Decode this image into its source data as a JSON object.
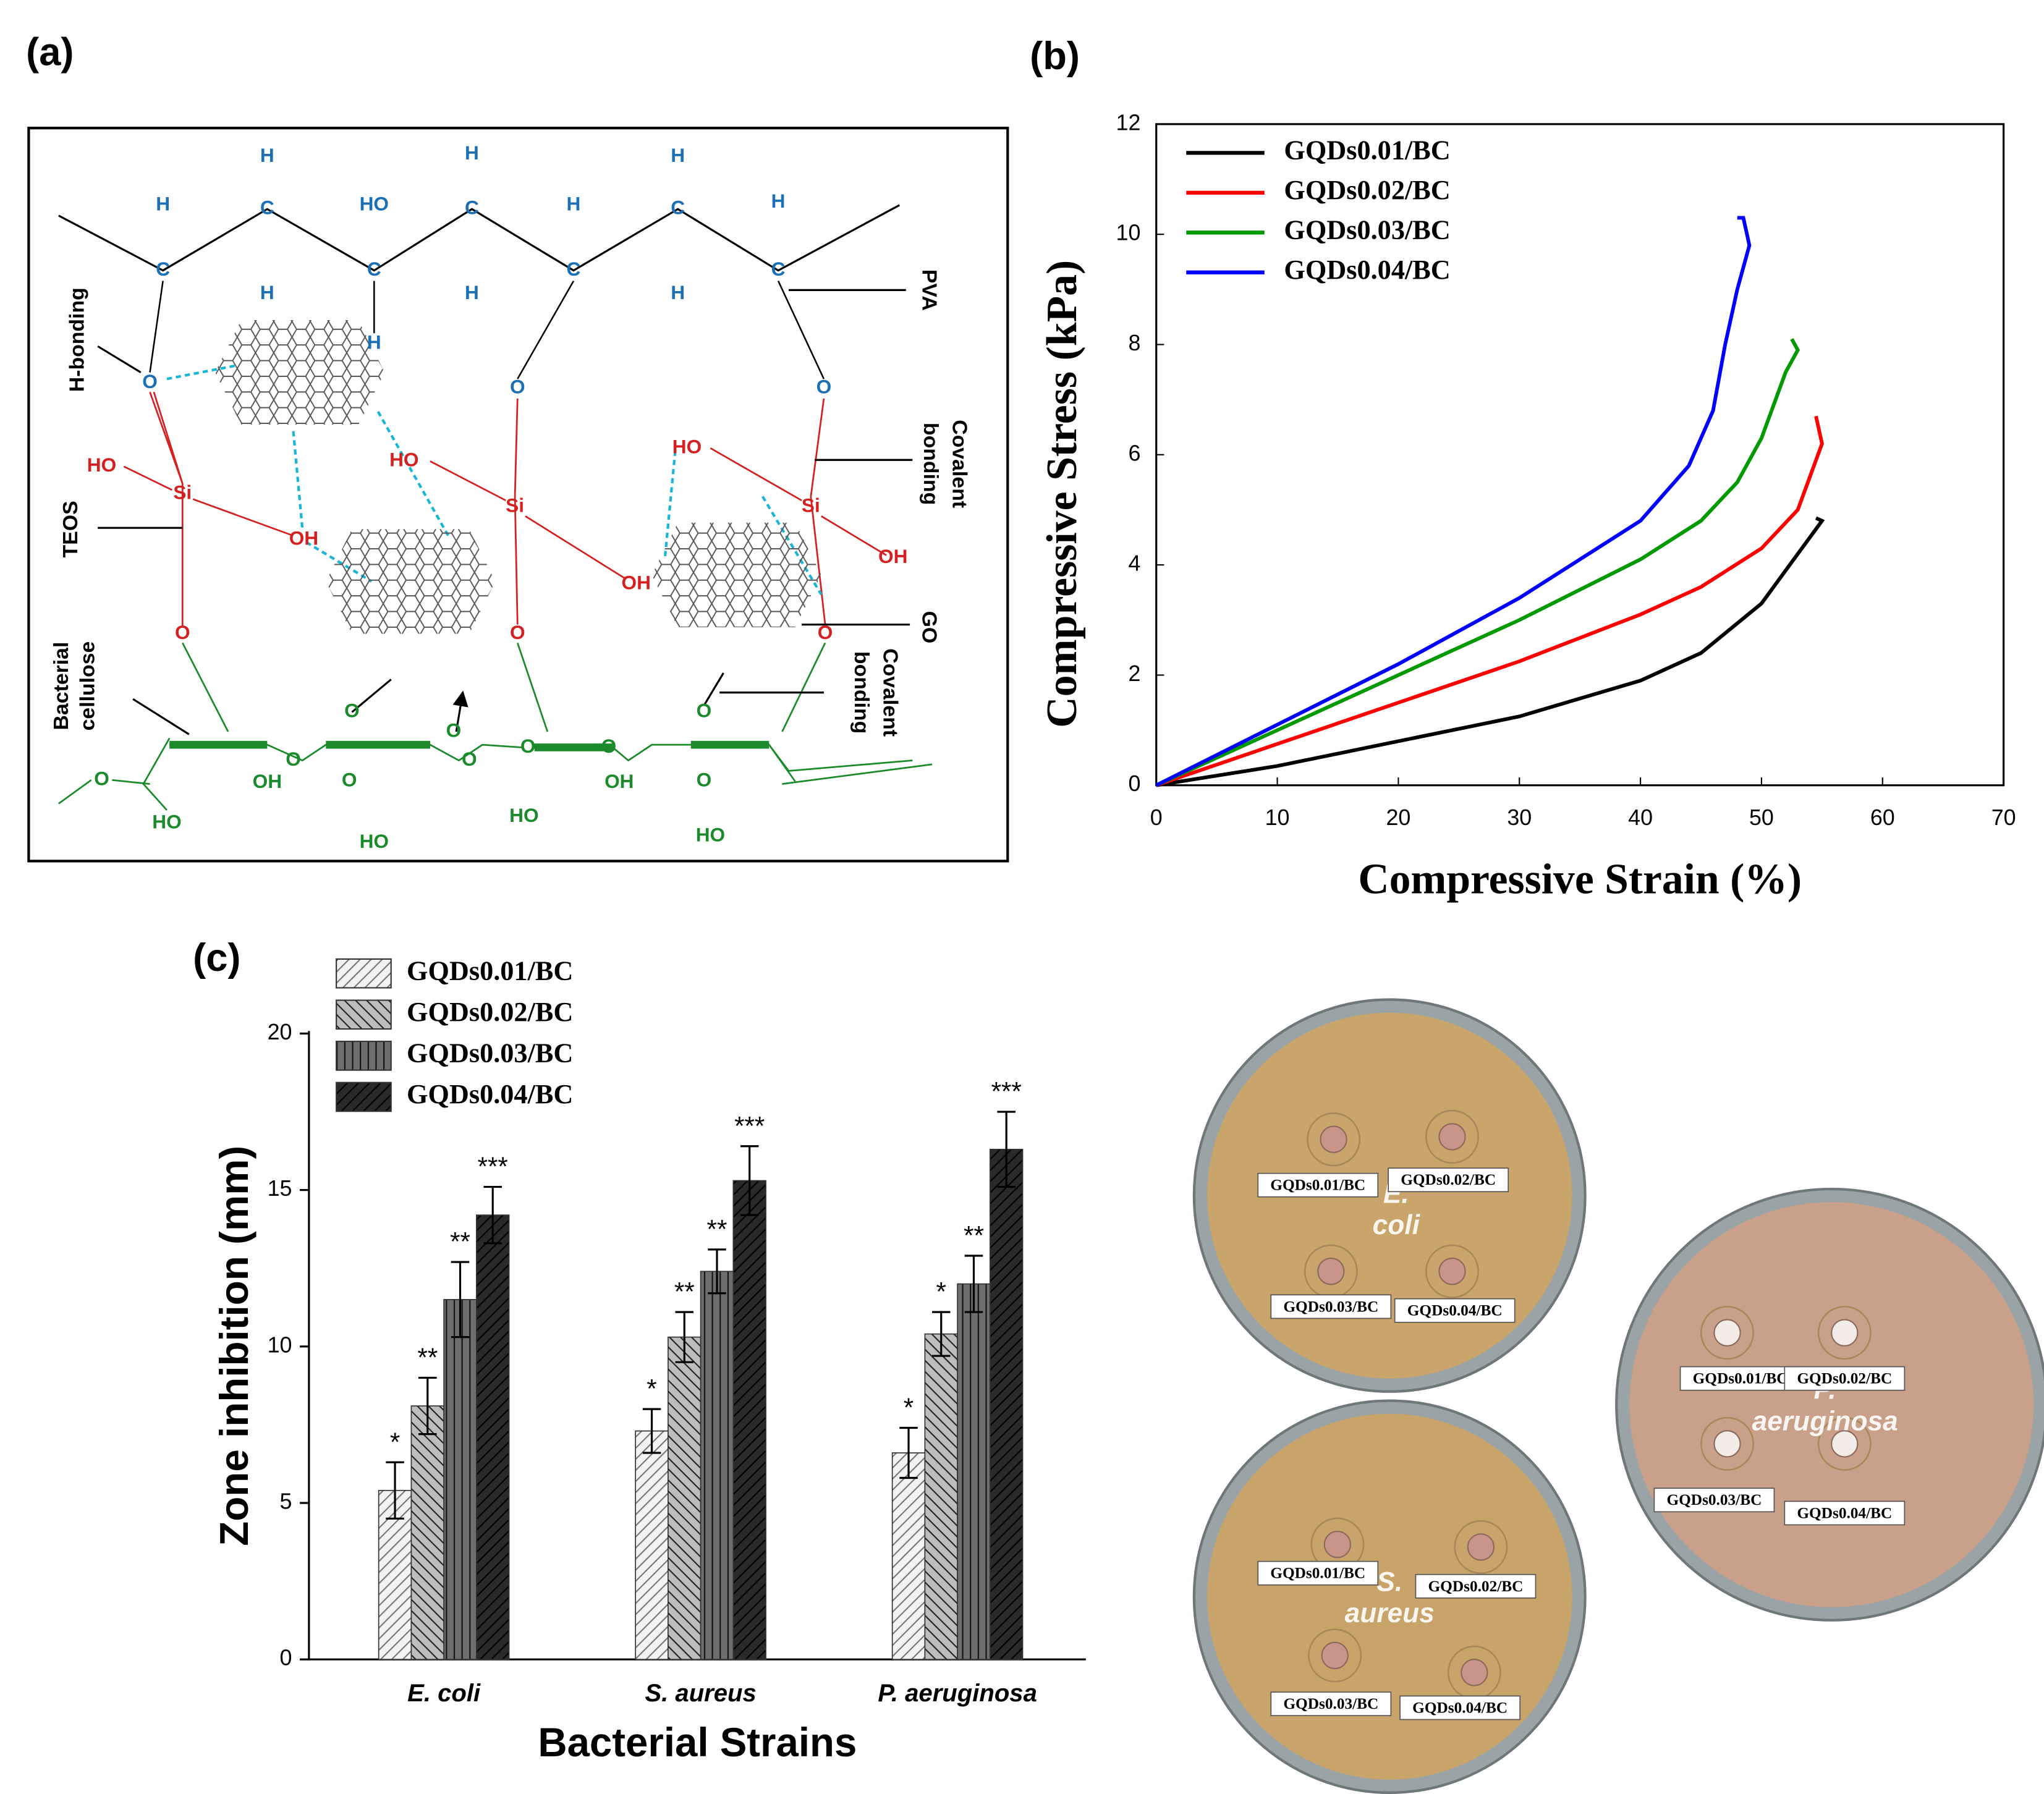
{
  "panel_labels": [
    "(a)",
    "(b)",
    "(c)"
  ],
  "diagram": {
    "labels": {
      "h_bonding": "H-bonding",
      "teos": "TEOS",
      "cellulose": [
        "Bacterial",
        "cellulose"
      ],
      "pva": "PVA",
      "covalent_1": [
        "Covalent",
        "bonding"
      ],
      "go": "GO",
      "covalent_2": [
        "Covalent",
        "bonding"
      ]
    },
    "atoms": [
      "C",
      "H",
      "C",
      "H",
      "H",
      "C",
      "HO",
      "H",
      "C",
      "H",
      "H",
      "C",
      "H",
      "C",
      "H",
      "H",
      "C",
      "H",
      "O",
      "O",
      "O",
      "HO",
      "Si",
      "OH",
      "HO",
      "Si",
      "OH",
      "HO",
      "Si",
      "OH",
      "O",
      "O",
      "O",
      "O",
      "OH",
      "HO",
      "O",
      "O",
      "O",
      "O",
      "HO",
      "O",
      "O",
      "OH",
      "HO",
      "O",
      "O",
      "O",
      "HO"
    ]
  },
  "chart_data": [
    {
      "type": "line",
      "xlabel": "Compressive Strain (%)",
      "ylabel": "Compressive Stress (kPa)",
      "xlim": [
        0,
        70
      ],
      "xticks": [
        0,
        10,
        20,
        30,
        40,
        50,
        60,
        70
      ],
      "ylim": [
        0,
        12
      ],
      "yticks": [
        0,
        2,
        4,
        6,
        8,
        10,
        12
      ],
      "legend": "upper left",
      "series": [
        {
          "name": "GQDs0.01/BC",
          "color": "#000000",
          "x": [
            0,
            10,
            20,
            30,
            40,
            45,
            50,
            53,
            55,
            54.5
          ],
          "values": [
            0,
            0.35,
            0.8,
            1.25,
            1.9,
            2.4,
            3.3,
            4.2,
            4.8,
            4.85
          ]
        },
        {
          "name": "GQDs0.02/BC",
          "color": "#ff0000",
          "x": [
            0,
            10,
            20,
            30,
            40,
            45,
            50,
            53,
            54,
            55,
            54.5
          ],
          "values": [
            0,
            0.75,
            1.5,
            2.25,
            3.1,
            3.6,
            4.3,
            5.0,
            5.6,
            6.2,
            6.7
          ]
        },
        {
          "name": "GQDs0.03/BC",
          "color": "#009900",
          "x": [
            0,
            10,
            20,
            30,
            40,
            45,
            48,
            50,
            52,
            53,
            52.5
          ],
          "values": [
            0,
            1,
            2,
            3,
            4.1,
            4.8,
            5.5,
            6.3,
            7.5,
            7.9,
            8.1
          ]
        },
        {
          "name": "GQDs0.04/BC",
          "color": "#0000ff",
          "x": [
            0,
            10,
            20,
            30,
            40,
            44,
            46,
            47,
            48,
            49,
            48.5,
            48
          ],
          "values": [
            0,
            1.1,
            2.2,
            3.4,
            4.8,
            5.8,
            6.8,
            8,
            9,
            9.8,
            10.3,
            10.3
          ]
        }
      ]
    },
    {
      "type": "bar",
      "xlabel": "Bacterial Strains",
      "ylabel": "Zone inhibition (mm)",
      "categories": [
        "E. coli",
        "S. aureus",
        "P. aeruginosa"
      ],
      "ylim": [
        0,
        20
      ],
      "yticks": [
        0,
        5,
        10,
        15,
        20
      ],
      "legend": "upper left",
      "series": [
        {
          "name": "GQDs0.01/BC",
          "color": "#f2f2f2",
          "values": [
            5.4,
            7.3,
            6.6
          ],
          "errors": [
            0.9,
            0.7,
            0.8
          ],
          "annotations": [
            "*",
            "*",
            "*"
          ]
        },
        {
          "name": "GQDs0.02/BC",
          "color": "#bdbdbd",
          "values": [
            8.1,
            10.3,
            10.4
          ],
          "errors": [
            0.9,
            0.8,
            0.7
          ],
          "annotations": [
            "**",
            "**",
            "*"
          ]
        },
        {
          "name": "GQDs0.03/BC",
          "color": "#6e6e6e",
          "values": [
            11.5,
            12.4,
            12.0
          ],
          "errors": [
            1.2,
            0.7,
            0.9
          ],
          "annotations": [
            "**",
            "**",
            "**"
          ]
        },
        {
          "name": "GQDs0.04/BC",
          "color": "#2a2a2a",
          "values": [
            14.2,
            15.3,
            16.3
          ],
          "errors": [
            0.9,
            1.1,
            1.2
          ],
          "annotations": [
            "***",
            "***",
            "***"
          ]
        }
      ]
    }
  ],
  "plates": [
    {
      "organism": [
        "E.",
        "coli"
      ],
      "samples": [
        "GQDs0.01/BC",
        "GQDs0.02/BC",
        "GQDs0.03/BC",
        "GQDs0.04/BC"
      ]
    },
    {
      "organism": [
        "S.",
        "aureus"
      ],
      "samples": [
        "GQDs0.01/BC",
        "GQDs0.02/BC",
        "GQDs0.03/BC",
        "GQDs0.04/BC"
      ]
    },
    {
      "organism": [
        "P.",
        "aeruginosa"
      ],
      "samples": [
        "GQDs0.01/BC",
        "GQDs0.02/BC",
        "GQDs0.03/BC",
        "GQDs0.04/BC"
      ]
    }
  ]
}
